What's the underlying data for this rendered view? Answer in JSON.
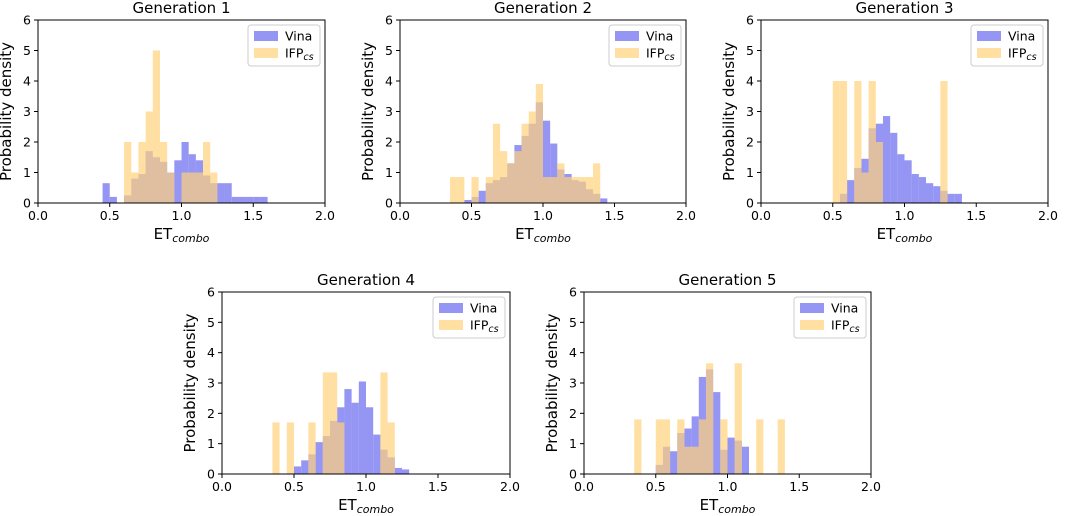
{
  "figure": {
    "colors": {
      "vina": "#7b7bf0",
      "ifp": "#ffd27a",
      "overlap": "#c08d93",
      "axis": "#000000"
    }
  },
  "chart_data": [
    {
      "type": "bar",
      "title": "Generation 1",
      "xlabel": "ET",
      "xlabel_sub": "combo",
      "ylabel": "Probability density",
      "xlim": [
        0.0,
        2.0
      ],
      "ylim": [
        0,
        6
      ],
      "x_ticks": [
        "0.0",
        "0.5",
        "1.0",
        "1.5",
        "2.0"
      ],
      "y_ticks": [
        "0",
        "1",
        "2",
        "3",
        "4",
        "5",
        "6"
      ],
      "legend": [
        {
          "label": "Vina",
          "sub": ""
        },
        {
          "label": "IFP",
          "sub": "cs"
        }
      ],
      "series": [
        {
          "name": "Vina",
          "bin_width": 0.05,
          "bins": [
            [
              0.45,
              0.65
            ],
            [
              0.5,
              0.2
            ],
            [
              0.6,
              0.25
            ],
            [
              0.65,
              0.8
            ],
            [
              0.7,
              0.95
            ],
            [
              0.75,
              1.7
            ],
            [
              0.8,
              1.5
            ],
            [
              0.85,
              1.35
            ],
            [
              0.9,
              1.0
            ],
            [
              0.95,
              1.4
            ],
            [
              1.0,
              2.0
            ],
            [
              1.05,
              1.6
            ],
            [
              1.1,
              1.4
            ],
            [
              1.15,
              0.9
            ],
            [
              1.2,
              0.65
            ],
            [
              1.25,
              0.65
            ],
            [
              1.3,
              0.65
            ],
            [
              1.35,
              0.2
            ],
            [
              1.4,
              0.2
            ],
            [
              1.45,
              0.2
            ],
            [
              1.5,
              0.2
            ],
            [
              1.55,
              0.2
            ]
          ]
        },
        {
          "name": "IFP",
          "bin_width": 0.05,
          "bins": [
            [
              0.6,
              2.0
            ],
            [
              0.65,
              1.0
            ],
            [
              0.7,
              2.0
            ],
            [
              0.75,
              3.0
            ],
            [
              0.8,
              5.0
            ],
            [
              0.85,
              2.0
            ],
            [
              0.9,
              1.0
            ],
            [
              1.0,
              1.0
            ],
            [
              1.05,
              1.0
            ],
            [
              1.1,
              1.0
            ],
            [
              1.15,
              2.0
            ],
            [
              1.2,
              1.0
            ]
          ]
        }
      ]
    },
    {
      "type": "bar",
      "title": "Generation 2",
      "xlabel": "ET",
      "xlabel_sub": "combo",
      "ylabel": "Probability density",
      "xlim": [
        0.0,
        2.0
      ],
      "ylim": [
        0,
        6
      ],
      "x_ticks": [
        "0.0",
        "0.5",
        "1.0",
        "1.5",
        "2.0"
      ],
      "y_ticks": [
        "0",
        "1",
        "2",
        "3",
        "4",
        "5",
        "6"
      ],
      "legend": [
        {
          "label": "Vina",
          "sub": ""
        },
        {
          "label": "IFP",
          "sub": "cs"
        }
      ],
      "series": [
        {
          "name": "Vina",
          "bin_width": 0.05,
          "bins": [
            [
              0.45,
              0.1
            ],
            [
              0.5,
              0.2
            ],
            [
              0.55,
              0.4
            ],
            [
              0.6,
              0.65
            ],
            [
              0.65,
              0.75
            ],
            [
              0.7,
              0.85
            ],
            [
              0.75,
              1.3
            ],
            [
              0.8,
              1.9
            ],
            [
              0.85,
              2.2
            ],
            [
              0.9,
              2.6
            ],
            [
              0.95,
              3.3
            ],
            [
              1.0,
              2.7
            ],
            [
              1.05,
              1.95
            ],
            [
              1.1,
              1.1
            ],
            [
              1.15,
              0.95
            ],
            [
              1.2,
              0.75
            ],
            [
              1.25,
              0.7
            ],
            [
              1.3,
              0.45
            ],
            [
              1.35,
              0.3
            ],
            [
              1.4,
              0.15
            ]
          ]
        },
        {
          "name": "IFP",
          "bin_width": 0.05,
          "bins": [
            [
              0.35,
              0.85
            ],
            [
              0.4,
              0.85
            ],
            [
              0.5,
              0.85
            ],
            [
              0.6,
              0.85
            ],
            [
              0.65,
              2.6
            ],
            [
              0.7,
              1.7
            ],
            [
              0.75,
              1.3
            ],
            [
              0.8,
              1.7
            ],
            [
              0.85,
              2.6
            ],
            [
              0.9,
              3.0
            ],
            [
              0.95,
              3.9
            ],
            [
              1.0,
              0.85
            ],
            [
              1.05,
              0.85
            ],
            [
              1.1,
              1.3
            ],
            [
              1.15,
              0.85
            ],
            [
              1.2,
              0.85
            ],
            [
              1.25,
              0.85
            ],
            [
              1.3,
              0.85
            ],
            [
              1.35,
              1.3
            ]
          ]
        }
      ]
    },
    {
      "type": "bar",
      "title": "Generation 3",
      "xlabel": "ET",
      "xlabel_sub": "combo",
      "ylabel": "Probability density",
      "xlim": [
        0.0,
        2.0
      ],
      "ylim": [
        0,
        6
      ],
      "x_ticks": [
        "0.0",
        "0.5",
        "1.0",
        "1.5",
        "2.0"
      ],
      "y_ticks": [
        "0",
        "1",
        "2",
        "3",
        "4",
        "5",
        "6"
      ],
      "legend": [
        {
          "label": "Vina",
          "sub": ""
        },
        {
          "label": "IFP",
          "sub": "cs"
        }
      ],
      "series": [
        {
          "name": "Vina",
          "bin_width": 0.05,
          "bins": [
            [
              0.55,
              0.3
            ],
            [
              0.6,
              0.75
            ],
            [
              0.65,
              1.15
            ],
            [
              0.7,
              1.45
            ],
            [
              0.75,
              2.45
            ],
            [
              0.8,
              2.6
            ],
            [
              0.85,
              2.85
            ],
            [
              0.9,
              2.3
            ],
            [
              0.95,
              1.6
            ],
            [
              1.0,
              1.4
            ],
            [
              1.05,
              0.95
            ],
            [
              1.1,
              0.85
            ],
            [
              1.15,
              0.65
            ],
            [
              1.2,
              0.55
            ],
            [
              1.25,
              0.4
            ],
            [
              1.3,
              0.3
            ],
            [
              1.35,
              0.3
            ]
          ]
        },
        {
          "name": "IFP",
          "bin_width": 0.05,
          "bins": [
            [
              0.5,
              4.0
            ],
            [
              0.55,
              4.0
            ],
            [
              0.65,
              4.0
            ],
            [
              0.7,
              1.0
            ],
            [
              0.75,
              4.0
            ],
            [
              0.8,
              2.0
            ],
            [
              1.25,
              4.0
            ]
          ]
        }
      ]
    },
    {
      "type": "bar",
      "title": "Generation 4",
      "xlabel": "ET",
      "xlabel_sub": "combo",
      "ylabel": "Probability density",
      "xlim": [
        0.0,
        2.0
      ],
      "ylim": [
        0,
        6
      ],
      "x_ticks": [
        "0.0",
        "0.5",
        "1.0",
        "1.5",
        "2.0"
      ],
      "y_ticks": [
        "0",
        "1",
        "2",
        "3",
        "4",
        "5",
        "6"
      ],
      "legend": [
        {
          "label": "Vina",
          "sub": ""
        },
        {
          "label": "IFP",
          "sub": "cs"
        }
      ],
      "series": [
        {
          "name": "Vina",
          "bin_width": 0.05,
          "bins": [
            [
              0.5,
              0.25
            ],
            [
              0.55,
              0.45
            ],
            [
              0.6,
              0.65
            ],
            [
              0.65,
              1.05
            ],
            [
              0.7,
              1.25
            ],
            [
              0.75,
              1.75
            ],
            [
              0.8,
              2.2
            ],
            [
              0.85,
              2.8
            ],
            [
              0.9,
              2.35
            ],
            [
              0.95,
              3.05
            ],
            [
              1.0,
              2.2
            ],
            [
              1.05,
              1.3
            ],
            [
              1.1,
              0.8
            ],
            [
              1.15,
              0.55
            ],
            [
              1.2,
              0.2
            ],
            [
              1.25,
              0.15
            ]
          ]
        },
        {
          "name": "IFP",
          "bin_width": 0.05,
          "bins": [
            [
              0.35,
              1.7
            ],
            [
              0.45,
              1.7
            ],
            [
              0.6,
              1.7
            ],
            [
              0.7,
              3.35
            ],
            [
              0.75,
              3.35
            ],
            [
              0.8,
              1.7
            ],
            [
              1.1,
              3.35
            ],
            [
              1.15,
              1.7
            ]
          ]
        }
      ]
    },
    {
      "type": "bar",
      "title": "Generation 5",
      "xlabel": "ET",
      "xlabel_sub": "combo",
      "ylabel": "Probability density",
      "xlim": [
        0.0,
        2.0
      ],
      "ylim": [
        0,
        6
      ],
      "x_ticks": [
        "0.0",
        "0.5",
        "1.0",
        "1.5",
        "2.0"
      ],
      "y_ticks": [
        "0",
        "1",
        "2",
        "3",
        "4",
        "5",
        "6"
      ],
      "legend": [
        {
          "label": "Vina",
          "sub": ""
        },
        {
          "label": "IFP",
          "sub": "cs"
        }
      ],
      "series": [
        {
          "name": "Vina",
          "bin_width": 0.05,
          "bins": [
            [
              0.5,
              0.3
            ],
            [
              0.55,
              0.9
            ],
            [
              0.6,
              0.75
            ],
            [
              0.65,
              1.35
            ],
            [
              0.7,
              1.5
            ],
            [
              0.75,
              1.9
            ],
            [
              0.8,
              3.2
            ],
            [
              0.85,
              3.45
            ],
            [
              0.9,
              2.7
            ],
            [
              0.95,
              0.8
            ],
            [
              1.0,
              1.2
            ],
            [
              1.05,
              1.1
            ],
            [
              1.1,
              0.9
            ]
          ]
        },
        {
          "name": "IFP",
          "bin_width": 0.05,
          "bins": [
            [
              0.35,
              1.8
            ],
            [
              0.5,
              1.8
            ],
            [
              0.55,
              1.8
            ],
            [
              0.65,
              1.8
            ],
            [
              0.7,
              0.9
            ],
            [
              0.75,
              0.9
            ],
            [
              0.8,
              1.8
            ],
            [
              0.85,
              3.65
            ],
            [
              0.95,
              1.8
            ],
            [
              1.05,
              3.65
            ],
            [
              1.2,
              1.8
            ],
            [
              1.35,
              1.8
            ]
          ]
        }
      ]
    }
  ]
}
